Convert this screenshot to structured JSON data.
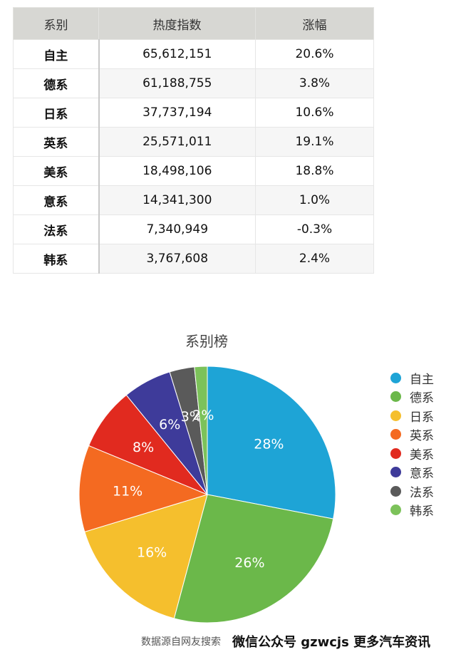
{
  "table": {
    "headers": [
      "系别",
      "热度指数",
      "涨幅"
    ],
    "rows": [
      {
        "series": "自主",
        "index": "65,612,151",
        "growth": "20.6%"
      },
      {
        "series": "德系",
        "index": "61,188,755",
        "growth": "3.8%"
      },
      {
        "series": "日系",
        "index": "37,737,194",
        "growth": "10.6%"
      },
      {
        "series": "英系",
        "index": "25,571,011",
        "growth": "19.1%"
      },
      {
        "series": "美系",
        "index": "18,498,106",
        "growth": "18.8%"
      },
      {
        "series": "意系",
        "index": "14,341,300",
        "growth": "1.0%"
      },
      {
        "series": "法系",
        "index": "7,340,949",
        "growth": "-0.3%"
      },
      {
        "series": "韩系",
        "index": "3,767,608",
        "growth": "2.4%"
      }
    ]
  },
  "chart_data": {
    "type": "pie",
    "title": "系别榜",
    "categories": [
      "自主",
      "德系",
      "日系",
      "英系",
      "美系",
      "意系",
      "法系",
      "韩系"
    ],
    "values": [
      65612151,
      61188755,
      37737194,
      25571011,
      18498106,
      14341300,
      7340949,
      3767608
    ],
    "labels": [
      "28%",
      "26%",
      "16%",
      "11%",
      "8%",
      "6%",
      "3%",
      "2%"
    ],
    "colors": [
      "#1ea4d6",
      "#6bb84a",
      "#f5bf2d",
      "#f46a21",
      "#e12a1f",
      "#3e3b9a",
      "#5a5a5a",
      "#7cc25a"
    ],
    "legend_position": "right"
  },
  "footer": {
    "source": "数据源自网友搜索",
    "watermark": "微信公众号 gzwcjs 更多汽车资讯"
  }
}
